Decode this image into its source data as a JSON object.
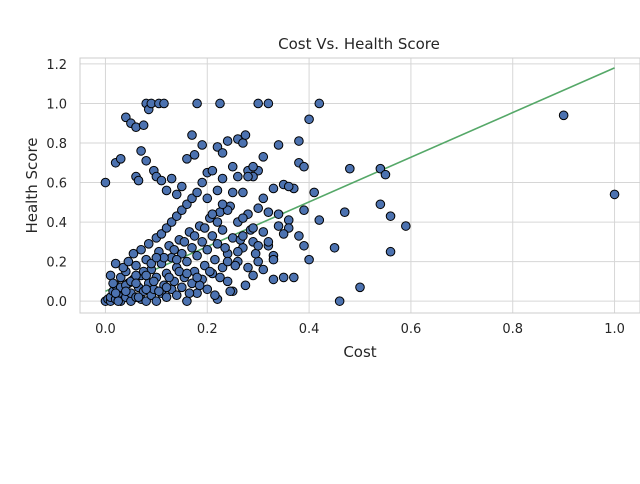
{
  "chart_data": {
    "type": "scatter",
    "title": "Cost Vs. Health Score",
    "xlabel": "Cost",
    "ylabel": "Health Score",
    "xlim": [
      -0.05,
      1.05
    ],
    "ylim": [
      -0.06,
      1.23
    ],
    "xticks": [
      "0.0",
      "0.2",
      "0.4",
      "0.6",
      "0.8",
      "1.0"
    ],
    "xtick_values": [
      0.0,
      0.2,
      0.4,
      0.6,
      0.8,
      1.0
    ],
    "yticks": [
      "0.0",
      "0.2",
      "0.4",
      "0.6",
      "0.8",
      "1.0",
      "1.2"
    ],
    "ytick_values": [
      0.0,
      0.2,
      0.4,
      0.6,
      0.8,
      1.0,
      1.2
    ],
    "grid": true,
    "colors": {
      "points": "#4c72b0",
      "point_edge": "#000000",
      "trend": "#55a868",
      "grid": "#d6d6d6"
    },
    "trendline": {
      "x": [
        0.0,
        1.0
      ],
      "y": [
        0.05,
        1.18
      ]
    },
    "series": [
      {
        "points": [
          [
            0.0,
            0.0
          ],
          [
            0.005,
            0.01
          ],
          [
            0.01,
            0.0
          ],
          [
            0.01,
            0.02
          ],
          [
            0.015,
            0.05
          ],
          [
            0.02,
            0.01
          ],
          [
            0.02,
            0.08
          ],
          [
            0.025,
            0.03
          ],
          [
            0.03,
            0.12
          ],
          [
            0.03,
            0.0
          ],
          [
            0.035,
            0.06
          ],
          [
            0.04,
            0.02
          ],
          [
            0.04,
            0.15
          ],
          [
            0.045,
            0.09
          ],
          [
            0.05,
            0.0
          ],
          [
            0.05,
            0.04
          ],
          [
            0.055,
            0.11
          ],
          [
            0.06,
            0.02
          ],
          [
            0.06,
            0.18
          ],
          [
            0.065,
            0.07
          ],
          [
            0.07,
            0.01
          ],
          [
            0.07,
            0.13
          ],
          [
            0.075,
            0.05
          ],
          [
            0.08,
            0.0
          ],
          [
            0.08,
            0.21
          ],
          [
            0.085,
            0.09
          ],
          [
            0.09,
            0.03
          ],
          [
            0.09,
            0.16
          ],
          [
            0.095,
            0.06
          ],
          [
            0.1,
            0.0
          ],
          [
            0.1,
            0.12
          ],
          [
            0.105,
            0.25
          ],
          [
            0.11,
            0.04
          ],
          [
            0.11,
            0.19
          ],
          [
            0.115,
            0.08
          ],
          [
            0.12,
            0.02
          ],
          [
            0.12,
            0.14
          ],
          [
            0.125,
            0.28
          ],
          [
            0.13,
            0.06
          ],
          [
            0.13,
            0.22
          ],
          [
            0.135,
            0.1
          ],
          [
            0.14,
            0.03
          ],
          [
            0.14,
            0.17
          ],
          [
            0.145,
            0.31
          ],
          [
            0.15,
            0.07
          ],
          [
            0.15,
            0.24
          ],
          [
            0.155,
            0.12
          ],
          [
            0.16,
            0.0
          ],
          [
            0.16,
            0.2
          ],
          [
            0.165,
            0.35
          ],
          [
            0.17,
            0.09
          ],
          [
            0.17,
            0.27
          ],
          [
            0.175,
            0.15
          ],
          [
            0.18,
            0.04
          ],
          [
            0.18,
            0.23
          ],
          [
            0.185,
            0.38
          ],
          [
            0.19,
            0.11
          ],
          [
            0.19,
            0.3
          ],
          [
            0.195,
            0.18
          ],
          [
            0.2,
            0.06
          ],
          [
            0.2,
            0.26
          ],
          [
            0.205,
            0.42
          ],
          [
            0.21,
            0.14
          ],
          [
            0.21,
            0.33
          ],
          [
            0.215,
            0.21
          ],
          [
            0.22,
            0.01
          ],
          [
            0.22,
            0.29
          ],
          [
            0.225,
            0.45
          ],
          [
            0.23,
            0.17
          ],
          [
            0.23,
            0.36
          ],
          [
            0.24,
            0.24
          ],
          [
            0.24,
            0.1
          ],
          [
            0.245,
            0.48
          ],
          [
            0.25,
            0.05
          ],
          [
            0.25,
            0.32
          ],
          [
            0.26,
            0.2
          ],
          [
            0.26,
            0.4
          ],
          [
            0.27,
            0.27
          ],
          [
            0.27,
            0.55
          ],
          [
            0.28,
            0.17
          ],
          [
            0.28,
            0.44
          ],
          [
            0.29,
            0.13
          ],
          [
            0.29,
            0.3
          ],
          [
            0.3,
            0.2
          ],
          [
            0.3,
            0.66
          ],
          [
            0.31,
            0.35
          ],
          [
            0.31,
            0.52
          ],
          [
            0.32,
            0.28
          ],
          [
            0.32,
            0.45
          ],
          [
            0.33,
            0.11
          ],
          [
            0.33,
            0.57
          ],
          [
            0.34,
            0.38
          ],
          [
            0.35,
            0.12
          ],
          [
            0.35,
            0.59
          ],
          [
            0.36,
            0.41
          ],
          [
            0.37,
            0.57
          ],
          [
            0.38,
            0.33
          ],
          [
            0.38,
            0.81
          ],
          [
            0.39,
            0.28
          ],
          [
            0.39,
            0.46
          ],
          [
            0.4,
            0.21
          ],
          [
            0.4,
            0.92
          ],
          [
            0.41,
            0.55
          ],
          [
            0.42,
            1.0
          ],
          [
            0.01,
            0.13
          ],
          [
            0.015,
            0.09
          ],
          [
            0.02,
            0.19
          ],
          [
            0.025,
            0.0
          ],
          [
            0.03,
            0.07
          ],
          [
            0.035,
            0.17
          ],
          [
            0.04,
            0.08
          ],
          [
            0.045,
            0.2
          ],
          [
            0.05,
            0.1
          ],
          [
            0.055,
            0.24
          ],
          [
            0.06,
            0.13
          ],
          [
            0.065,
            0.02
          ],
          [
            0.07,
            0.26
          ],
          [
            0.075,
            0.15
          ],
          [
            0.08,
            0.06
          ],
          [
            0.085,
            0.29
          ],
          [
            0.09,
            0.19
          ],
          [
            0.095,
            0.1
          ],
          [
            0.1,
            0.32
          ],
          [
            0.105,
            0.05
          ],
          [
            0.11,
            0.34
          ],
          [
            0.115,
            0.22
          ],
          [
            0.12,
            0.37
          ],
          [
            0.125,
            0.12
          ],
          [
            0.13,
            0.4
          ],
          [
            0.135,
            0.26
          ],
          [
            0.14,
            0.43
          ],
          [
            0.145,
            0.15
          ],
          [
            0.15,
            0.46
          ],
          [
            0.155,
            0.3
          ],
          [
            0.16,
            0.49
          ],
          [
            0.165,
            0.04
          ],
          [
            0.17,
            0.52
          ],
          [
            0.175,
            0.33
          ],
          [
            0.18,
            0.55
          ],
          [
            0.185,
            0.08
          ],
          [
            0.19,
            0.6
          ],
          [
            0.195,
            0.37
          ],
          [
            0.2,
            0.52
          ],
          [
            0.205,
            0.15
          ],
          [
            0.21,
            0.44
          ],
          [
            0.215,
            0.03
          ],
          [
            0.22,
            0.56
          ],
          [
            0.225,
            0.12
          ],
          [
            0.23,
            0.62
          ],
          [
            0.235,
            0.27
          ],
          [
            0.24,
            0.46
          ],
          [
            0.245,
            0.05
          ],
          [
            0.25,
            0.55
          ],
          [
            0.255,
            0.18
          ],
          [
            0.26,
            0.63
          ],
          [
            0.265,
            0.31
          ],
          [
            0.27,
            0.42
          ],
          [
            0.275,
            0.08
          ],
          [
            0.28,
            0.66
          ],
          [
            0.285,
            0.36
          ],
          [
            0.29,
            0.63
          ],
          [
            0.295,
            0.24
          ],
          [
            0.3,
            0.47
          ],
          [
            0.31,
            0.16
          ],
          [
            0.32,
            0.3
          ],
          [
            0.33,
            0.23
          ],
          [
            0.34,
            0.44
          ],
          [
            0.36,
            0.37
          ],
          [
            0.0,
            0.6
          ],
          [
            0.02,
            0.7
          ],
          [
            0.03,
            0.72
          ],
          [
            0.04,
            0.93
          ],
          [
            0.05,
            0.9
          ],
          [
            0.06,
            0.63
          ],
          [
            0.065,
            0.61
          ],
          [
            0.06,
            0.88
          ],
          [
            0.07,
            0.76
          ],
          [
            0.075,
            0.89
          ],
          [
            0.08,
            0.71
          ],
          [
            0.08,
            1.0
          ],
          [
            0.085,
            0.97
          ],
          [
            0.09,
            1.0
          ],
          [
            0.095,
            0.66
          ],
          [
            0.1,
            0.63
          ],
          [
            0.105,
            1.0
          ],
          [
            0.115,
            1.0
          ],
          [
            0.11,
            0.61
          ],
          [
            0.12,
            0.56
          ],
          [
            0.13,
            0.62
          ],
          [
            0.14,
            0.54
          ],
          [
            0.15,
            0.58
          ],
          [
            0.16,
            0.72
          ],
          [
            0.17,
            0.84
          ],
          [
            0.175,
            0.74
          ],
          [
            0.18,
            1.0
          ],
          [
            0.19,
            0.79
          ],
          [
            0.2,
            0.65
          ],
          [
            0.21,
            0.66
          ],
          [
            0.22,
            0.78
          ],
          [
            0.225,
            1.0
          ],
          [
            0.23,
            0.75
          ],
          [
            0.24,
            0.81
          ],
          [
            0.25,
            0.68
          ],
          [
            0.26,
            0.82
          ],
          [
            0.27,
            0.8
          ],
          [
            0.275,
            0.84
          ],
          [
            0.28,
            0.63
          ],
          [
            0.29,
            0.68
          ],
          [
            0.3,
            1.0
          ],
          [
            0.31,
            0.73
          ],
          [
            0.32,
            1.0
          ],
          [
            0.34,
            0.79
          ],
          [
            0.36,
            0.58
          ],
          [
            0.38,
            0.7
          ],
          [
            0.39,
            0.68
          ],
          [
            0.42,
            0.41
          ],
          [
            0.45,
            0.27
          ],
          [
            0.46,
            0.0
          ],
          [
            0.47,
            0.45
          ],
          [
            0.48,
            0.67
          ],
          [
            0.5,
            0.07
          ],
          [
            0.54,
            0.49
          ],
          [
            0.54,
            0.67
          ],
          [
            0.55,
            0.64
          ],
          [
            0.56,
            0.43
          ],
          [
            0.56,
            0.25
          ],
          [
            0.59,
            0.38
          ],
          [
            0.9,
            0.94
          ],
          [
            1.0,
            0.54
          ],
          [
            0.24,
            0.2
          ],
          [
            0.27,
            0.33
          ],
          [
            0.3,
            0.28
          ],
          [
            0.35,
            0.34
          ],
          [
            0.37,
            0.12
          ],
          [
            0.22,
            0.4
          ],
          [
            0.23,
            0.49
          ],
          [
            0.26,
            0.25
          ],
          [
            0.29,
            0.37
          ],
          [
            0.33,
            0.21
          ],
          [
            0.18,
            0.12
          ],
          [
            0.16,
            0.14
          ],
          [
            0.14,
            0.21
          ],
          [
            0.12,
            0.07
          ],
          [
            0.1,
            0.22
          ],
          [
            0.08,
            0.13
          ],
          [
            0.06,
            0.09
          ],
          [
            0.04,
            0.05
          ],
          [
            0.02,
            0.04
          ]
        ]
      }
    ]
  }
}
